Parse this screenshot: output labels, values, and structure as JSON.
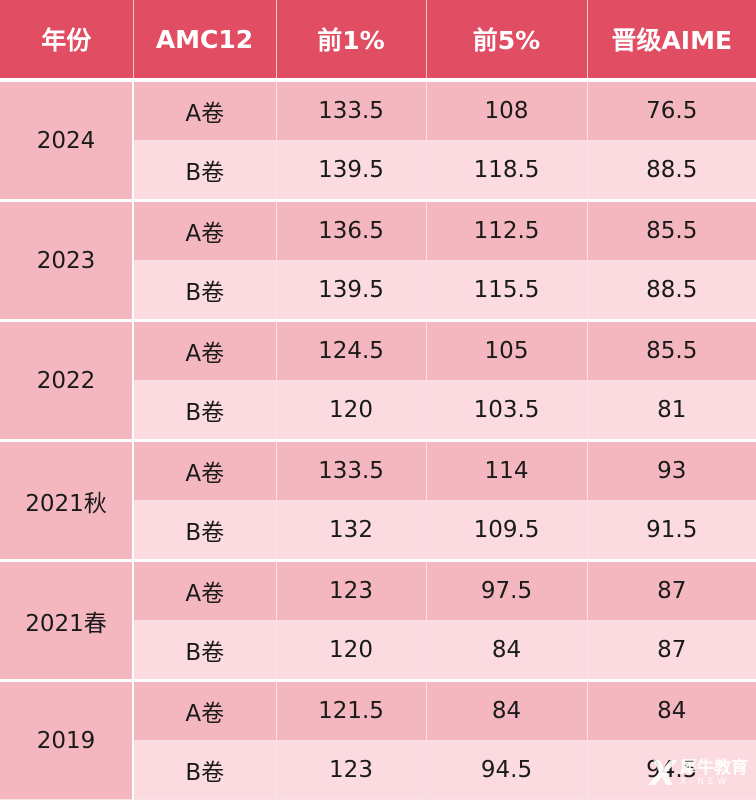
{
  "table": {
    "headers": [
      "年份",
      "AMC12",
      "前1%",
      "前5%",
      "晋级AIME"
    ],
    "groups": [
      {
        "year": "2024",
        "rows": [
          {
            "paper": "A卷",
            "top1": "133.5",
            "top5": "108",
            "aime": "76.5"
          },
          {
            "paper": "B卷",
            "top1": "139.5",
            "top5": "118.5",
            "aime": "88.5"
          }
        ]
      },
      {
        "year": "2023",
        "rows": [
          {
            "paper": "A卷",
            "top1": "136.5",
            "top5": "112.5",
            "aime": "85.5"
          },
          {
            "paper": "B卷",
            "top1": "139.5",
            "top5": "115.5",
            "aime": "88.5"
          }
        ]
      },
      {
        "year": "2022",
        "rows": [
          {
            "paper": "A卷",
            "top1": "124.5",
            "top5": "105",
            "aime": "85.5"
          },
          {
            "paper": "B卷",
            "top1": "120",
            "top5": "103.5",
            "aime": "81"
          }
        ]
      },
      {
        "year": "2021秋",
        "rows": [
          {
            "paper": "A卷",
            "top1": "133.5",
            "top5": "114",
            "aime": "93"
          },
          {
            "paper": "B卷",
            "top1": "132",
            "top5": "109.5",
            "aime": "91.5"
          }
        ]
      },
      {
        "year": "2021春",
        "rows": [
          {
            "paper": "A卷",
            "top1": "123",
            "top5": "97.5",
            "aime": "87"
          },
          {
            "paper": "B卷",
            "top1": "120",
            "top5": "84",
            "aime": "87"
          }
        ]
      },
      {
        "year": "2019",
        "rows": [
          {
            "paper": "A卷",
            "top1": "121.5",
            "top5": "84",
            "aime": "84"
          },
          {
            "paper": "B卷",
            "top1": "123",
            "top5": "94.5",
            "aime": "94.5"
          }
        ]
      }
    ]
  },
  "watermark": {
    "logo": "X",
    "name_cn": "犀牛教育",
    "name_en": "X-NEW"
  },
  "colors": {
    "header_bg": "#e14d63",
    "row_a_bg": "#f4b7c0",
    "row_b_bg": "#fbdbe0"
  }
}
